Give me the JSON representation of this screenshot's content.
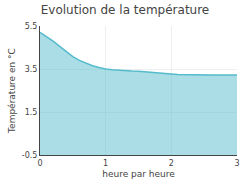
{
  "chart_data": {
    "type": "area",
    "title": "Evolution de la température",
    "x_label": "heure par heure",
    "y_label": "Température en °C",
    "x": [
      0,
      0.05,
      0.1,
      0.2,
      0.3,
      0.4,
      0.5,
      0.6,
      0.7,
      0.8,
      0.9,
      1.0,
      1.1,
      1.2,
      1.3,
      1.4,
      1.5,
      1.6,
      1.7,
      1.8,
      1.9,
      2.0,
      2.1,
      2.2,
      2.3,
      2.4,
      2.5,
      2.6,
      2.7,
      2.8,
      2.9,
      3.0
    ],
    "values": [
      5.2,
      5.1,
      5.0,
      4.8,
      4.55,
      4.3,
      4.08,
      3.9,
      3.76,
      3.65,
      3.57,
      3.5,
      3.47,
      3.44,
      3.42,
      3.41,
      3.4,
      3.38,
      3.36,
      3.34,
      3.3,
      3.27,
      3.24,
      3.23,
      3.22,
      3.22,
      3.22,
      3.22,
      3.22,
      3.22,
      3.22,
      3.22
    ],
    "color": "#55bbcc",
    "xlim": [
      0,
      3
    ],
    "ylim": [
      -0.5,
      5.5
    ],
    "xticks": [
      0,
      1,
      2,
      3
    ],
    "yticks": [
      -0.5,
      1.5,
      3.5,
      5.5
    ],
    "grid": true
  }
}
